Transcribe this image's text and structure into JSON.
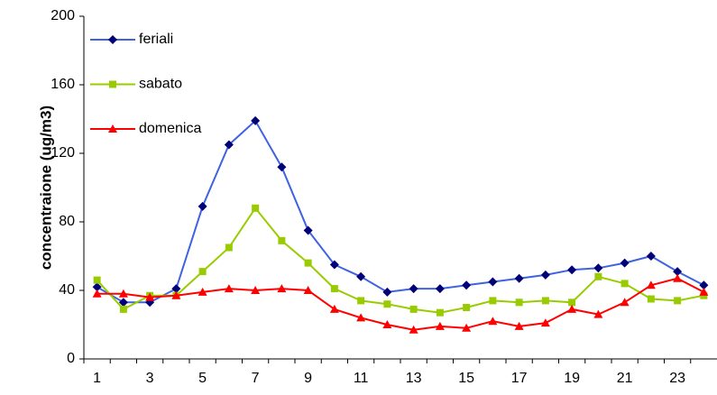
{
  "chart_data": {
    "type": "line",
    "y_label": "concentraione (ug/m3)",
    "categories": [
      "1",
      null,
      "3",
      null,
      "5",
      null,
      "7",
      null,
      "9",
      null,
      "11",
      null,
      "13",
      null,
      "15",
      null,
      "17",
      null,
      "19",
      null,
      "21",
      null,
      "23",
      null
    ],
    "series": [
      {
        "name": "feriali",
        "color": "#3f63e0",
        "marker_color": "#00007a",
        "marker": "diamond",
        "values": [
          42,
          33,
          33,
          41,
          89,
          125,
          139,
          112,
          75,
          55,
          48,
          39,
          41,
          41,
          43,
          45,
          47,
          49,
          52,
          53,
          56,
          60,
          51,
          43
        ]
      },
      {
        "name": "sabato",
        "color": "#99cc00",
        "marker_color": "#99cc00",
        "marker": "square",
        "values": [
          46,
          29,
          37,
          37,
          51,
          65,
          88,
          69,
          56,
          41,
          34,
          32,
          29,
          27,
          30,
          34,
          33,
          34,
          33,
          48,
          44,
          35,
          34,
          37
        ]
      },
      {
        "name": "domenica",
        "color": "#ff0000",
        "marker_color": "#ff0000",
        "marker": "triangle",
        "values": [
          38,
          38,
          36,
          37,
          39,
          41,
          40,
          41,
          40,
          29,
          24,
          20,
          17,
          19,
          18,
          22,
          19,
          21,
          29,
          26,
          33,
          43,
          47,
          39
        ]
      }
    ],
    "ylim": [
      0,
      200
    ],
    "yticks": [
      0,
      40,
      80,
      120,
      160,
      200
    ],
    "legend": "upper-left"
  }
}
